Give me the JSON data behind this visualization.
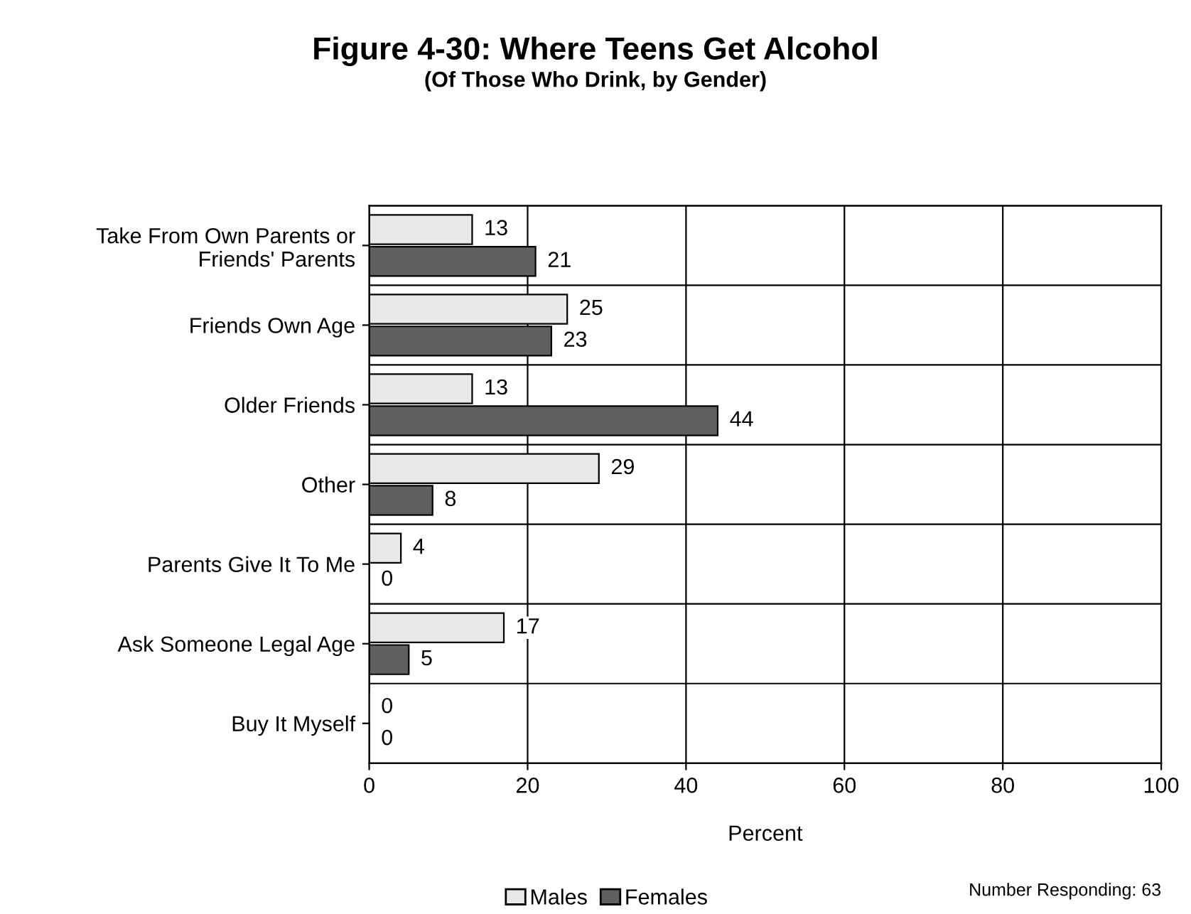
{
  "chart_data": {
    "type": "bar",
    "orientation": "horizontal",
    "title": "Figure 4-30: Where Teens Get Alcohol",
    "subtitle": "(Of Those Who Drink, by Gender)",
    "categories": [
      "Take From Own Parents or\nFriends' Parents",
      "Friends Own Age",
      "Older Friends",
      "Other",
      "Parents Give It To Me",
      "Ask Someone Legal Age",
      "Buy It Myself"
    ],
    "series": [
      {
        "name": "Males",
        "color": "#e8e8e8",
        "values": [
          13,
          25,
          13,
          29,
          4,
          17,
          0
        ]
      },
      {
        "name": "Females",
        "color": "#606060",
        "values": [
          21,
          23,
          44,
          8,
          0,
          5,
          0
        ]
      }
    ],
    "xlabel": "Percent",
    "xlim": [
      0,
      100
    ],
    "xticks": [
      0,
      20,
      40,
      60,
      80,
      100
    ],
    "grid": true,
    "legend": "bottom",
    "data_labels": true,
    "annotations": [
      "Number Responding: 63"
    ]
  }
}
